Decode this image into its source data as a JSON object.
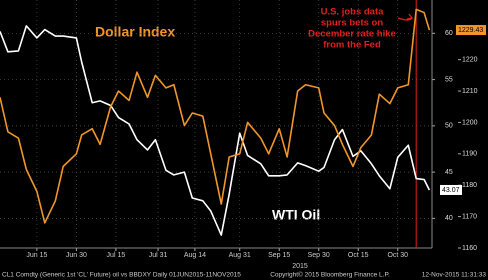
{
  "chart_data": {
    "type": "line",
    "title": "Dollar Index",
    "series_label": "WTI Oil",
    "annotation": [
      "U.S. jobs data",
      "spurs bets on",
      "December rate hike",
      "from the Fed"
    ],
    "event_line": {
      "x": "2015-11-06",
      "color": "#e0201e"
    },
    "xlabel": "2015",
    "x": [
      "2015-06-01",
      "2015-06-04",
      "2015-06-08",
      "2015-06-11",
      "2015-06-15",
      "2015-06-18",
      "2015-06-22",
      "2015-06-25",
      "2015-06-30",
      "2015-07-02",
      "2015-07-06",
      "2015-07-09",
      "2015-07-13",
      "2015-07-16",
      "2015-07-20",
      "2015-07-23",
      "2015-07-27",
      "2015-07-30",
      "2015-08-03",
      "2015-08-06",
      "2015-08-10",
      "2015-08-13",
      "2015-08-17",
      "2015-08-20",
      "2015-08-24",
      "2015-08-27",
      "2015-08-31",
      "2015-09-03",
      "2015-09-08",
      "2015-09-11",
      "2015-09-15",
      "2015-09-18",
      "2015-09-22",
      "2015-09-25",
      "2015-09-30",
      "2015-10-02",
      "2015-10-06",
      "2015-10-09",
      "2015-10-13",
      "2015-10-16",
      "2015-10-20",
      "2015-10-23",
      "2015-10-27",
      "2015-10-30",
      "2015-11-03",
      "2015-11-06",
      "2015-11-09",
      "2015-11-11"
    ],
    "xlim": [
      "2015-06-01",
      "2015-11-12"
    ],
    "xticks": [
      {
        "value": "2015-06-15",
        "label": "Jun 15"
      },
      {
        "value": "2015-06-30",
        "label": "Jun 30"
      },
      {
        "value": "2015-07-15",
        "label": "Jul 15"
      },
      {
        "value": "2015-07-31",
        "label": "Jul 31"
      },
      {
        "value": "2015-08-14",
        "label": "Aug 14"
      },
      {
        "value": "2015-08-31",
        "label": "Aug 31"
      },
      {
        "value": "2015-09-15",
        "label": "Sep 15"
      },
      {
        "value": "2015-09-30",
        "label": "Sep 30"
      },
      {
        "value": "2015-10-15",
        "label": "Oct 15"
      },
      {
        "value": "2015-10-30",
        "label": "Oct 30"
      }
    ],
    "ylim": [
      36.8,
      63.6
    ],
    "yticks": [
      40,
      45,
      50,
      55,
      60
    ],
    "y2lim": [
      1160,
      1239
    ],
    "y2ticks": [
      1160,
      1170,
      1180,
      1190,
      1200,
      1210,
      1220
    ],
    "grid": true,
    "series": [
      {
        "name": "WTI Oil",
        "color": "#ffffff",
        "axis": "y",
        "values": [
          60.2,
          58.0,
          58.1,
          60.8,
          59.5,
          60.4,
          59.7,
          59.7,
          59.5,
          56.9,
          52.5,
          52.7,
          52.2,
          50.9,
          50.2,
          48.5,
          47.4,
          48.5,
          45.2,
          44.7,
          45.0,
          42.2,
          41.9,
          40.8,
          38.2,
          42.6,
          49.2,
          46.8,
          45.9,
          44.6,
          44.6,
          44.7,
          46.0,
          45.7,
          45.1,
          45.5,
          48.5,
          49.6,
          46.7,
          47.3,
          45.9,
          44.6,
          43.2,
          46.6,
          47.9,
          44.3,
          44.2,
          43.07
        ]
      },
      {
        "name": "Dollar Index",
        "color": "#f0962a",
        "axis": "y2",
        "values": [
          1208,
          1197,
          1195,
          1185,
          1178,
          1168,
          1175,
          1186,
          1190,
          1196,
          1198,
          1193,
          1205,
          1210,
          1207,
          1216,
          1208,
          1215,
          1211,
          1212,
          1199,
          1203,
          1202,
          1190,
          1174,
          1189,
          1190,
          1200,
          1195,
          1190,
          1198,
          1189,
          1210,
          1212,
          1211,
          1203,
          1199,
          1193,
          1186,
          1192,
          1196,
          1209,
          1206,
          1211,
          1212,
          1236,
          1235,
          1229.43
        ]
      }
    ]
  },
  "footer": {
    "left": "CL1 Comdty (Generic 1st 'CL' Future) oil vs BBDXY  Daily 01JUN2015-11NOV2015",
    "center": "Copyright© 2015 Bloomberg Finance L.P.",
    "right": "12-Nov-2015 11:31:33"
  }
}
